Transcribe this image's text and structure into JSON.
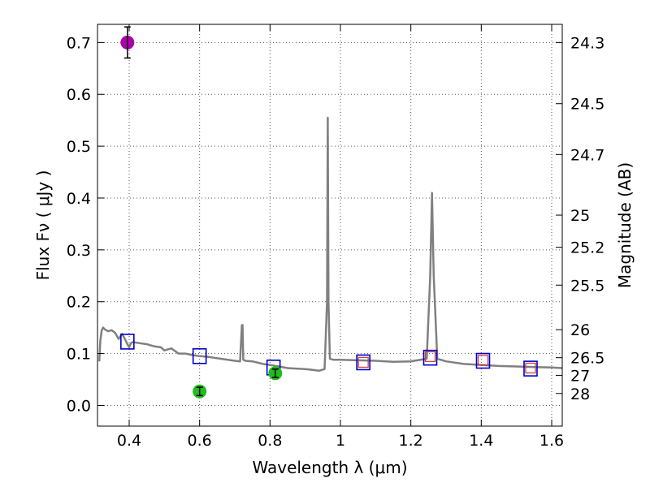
{
  "chart_data": {
    "type": "line",
    "xlabel": "Wavelength  λ (μm)",
    "ylabel": "Flux  Fν  ( μJy )",
    "ylabel_right": "Magnitude (AB)",
    "xlim": [
      0.31,
      1.63
    ],
    "ylim": [
      -0.04,
      0.735
    ],
    "x_ticks": [
      0.4,
      0.6,
      0.8,
      1.0,
      1.2,
      1.4,
      1.6
    ],
    "x_tick_labels": [
      "0.4",
      "0.6",
      "0.8",
      "1",
      "1.2",
      "1.4",
      "1.6"
    ],
    "y_ticks": [
      0.0,
      0.1,
      0.2,
      0.3,
      0.4,
      0.5,
      0.6,
      0.7
    ],
    "y_tick_labels": [
      "0.0",
      "0.1",
      "0.2",
      "0.3",
      "0.4",
      "0.5",
      "0.6",
      "0.7"
    ],
    "right_ticks": [
      {
        "label": "24.3",
        "flux": 0.7
      },
      {
        "label": "24.5",
        "flux": 0.582
      },
      {
        "label": "24.7",
        "flux": 0.484
      },
      {
        "label": "25",
        "flux": 0.367
      },
      {
        "label": "25.2",
        "flux": 0.305
      },
      {
        "label": "25.5",
        "flux": 0.232
      },
      {
        "label": "26",
        "flux": 0.146
      },
      {
        "label": "26.5",
        "flux": 0.092
      },
      {
        "label": "27",
        "flux": 0.058
      },
      {
        "label": "28",
        "flux": 0.023
      }
    ],
    "grid": true,
    "series": [
      {
        "name": "model-spectrum",
        "kind": "line",
        "color": "#808080",
        "x": [
          0.315,
          0.318,
          0.322,
          0.326,
          0.33,
          0.34,
          0.35,
          0.36,
          0.37,
          0.38,
          0.39,
          0.395,
          0.4,
          0.405,
          0.41,
          0.43,
          0.45,
          0.47,
          0.49,
          0.5,
          0.52,
          0.54,
          0.56,
          0.58,
          0.6,
          0.62,
          0.64,
          0.66,
          0.68,
          0.7,
          0.715,
          0.72,
          0.722,
          0.724,
          0.73,
          0.75,
          0.78,
          0.8,
          0.85,
          0.9,
          0.94,
          0.955,
          0.962,
          0.964,
          0.966,
          0.97,
          0.98,
          1.0,
          1.05,
          1.1,
          1.15,
          1.2,
          1.245,
          1.255,
          1.26,
          1.265,
          1.275,
          1.3,
          1.35,
          1.4,
          1.45,
          1.5,
          1.55,
          1.6,
          1.63
        ],
        "y": [
          0.085,
          0.125,
          0.145,
          0.15,
          0.147,
          0.143,
          0.145,
          0.14,
          0.128,
          0.138,
          0.125,
          0.118,
          0.112,
          0.12,
          0.122,
          0.12,
          0.118,
          0.114,
          0.112,
          0.106,
          0.11,
          0.1,
          0.1,
          0.097,
          0.095,
          0.094,
          0.092,
          0.09,
          0.088,
          0.086,
          0.085,
          0.155,
          0.155,
          0.088,
          0.086,
          0.085,
          0.08,
          0.078,
          0.072,
          0.07,
          0.067,
          0.07,
          0.2,
          0.555,
          0.2,
          0.09,
          0.088,
          0.088,
          0.087,
          0.086,
          0.084,
          0.085,
          0.09,
          0.25,
          0.41,
          0.25,
          0.09,
          0.085,
          0.08,
          0.078,
          0.076,
          0.075,
          0.074,
          0.073,
          0.072
        ]
      },
      {
        "name": "model-photometry",
        "kind": "square",
        "color": "#0000cc",
        "x": [
          0.395,
          0.6,
          0.81,
          1.065,
          1.255,
          1.405,
          1.54
        ],
        "y": [
          0.123,
          0.095,
          0.073,
          0.083,
          0.092,
          0.086,
          0.071
        ]
      },
      {
        "name": "observed-photometry",
        "kind": "square-small",
        "color": "#d04040",
        "x": [
          1.065,
          1.255,
          1.405,
          1.54
        ],
        "y": [
          0.083,
          0.094,
          0.087,
          0.072
        ]
      },
      {
        "name": "detections",
        "kind": "circle",
        "color": "#22bb22",
        "x": [
          0.6,
          0.815
        ],
        "y": [
          0.027,
          0.062
        ],
        "err": [
          0.008,
          0.008
        ]
      },
      {
        "name": "purple-point",
        "kind": "circle",
        "color": "#aa00aa",
        "x": [
          0.395
        ],
        "y": [
          0.7
        ],
        "err": [
          0.03
        ]
      }
    ]
  }
}
